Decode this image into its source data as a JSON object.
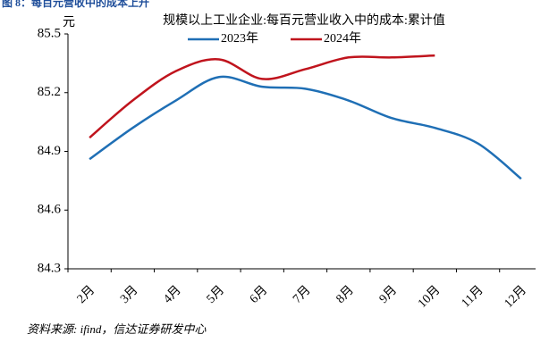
{
  "figure_title": "图 8：每百元营收中的成本上升",
  "source": "资料来源: ifind，信达证券研发中心",
  "chart_data": {
    "type": "line",
    "title": "规模以上工业企业:每百元营业收入中的成本:累计值",
    "y_label": "元",
    "categories": [
      "2月",
      "3月",
      "4月",
      "5月",
      "6月",
      "7月",
      "8月",
      "9月",
      "10月",
      "11月",
      "12月"
    ],
    "series": [
      {
        "name": "2023年",
        "color": "#1f6fb5",
        "values": [
          84.86,
          85.02,
          85.16,
          85.28,
          85.23,
          85.22,
          85.16,
          85.07,
          85.02,
          84.94,
          84.76
        ]
      },
      {
        "name": "2024年",
        "color": "#c0141d",
        "values": [
          84.97,
          85.16,
          85.31,
          85.37,
          85.27,
          85.32,
          85.38,
          85.38,
          85.39,
          null,
          null
        ]
      }
    ],
    "ylim": [
      84.3,
      85.5
    ],
    "yticks": [
      84.3,
      84.6,
      84.9,
      85.2,
      85.5
    ],
    "legend": "top"
  }
}
